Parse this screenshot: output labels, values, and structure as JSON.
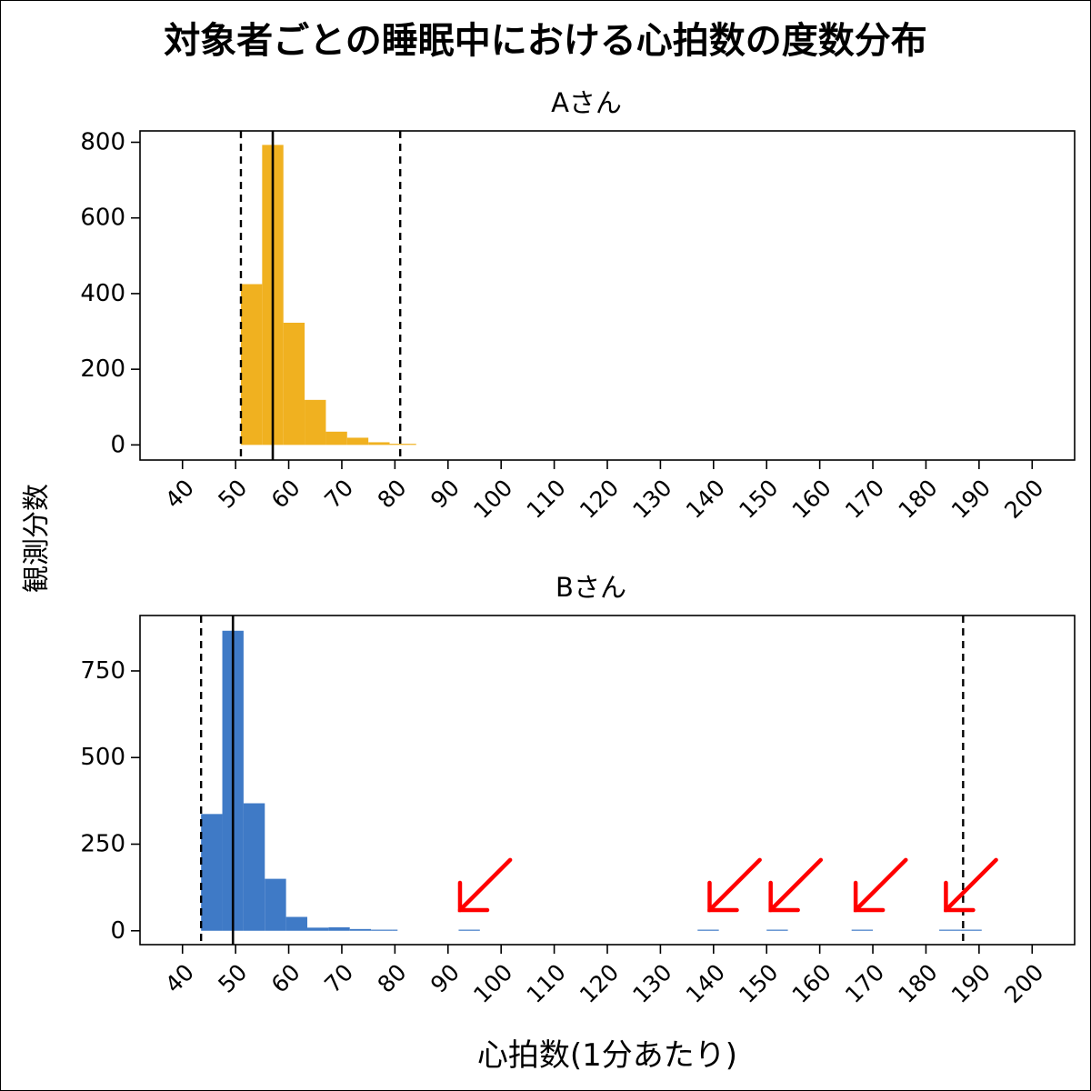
{
  "figure": {
    "title": "対象者ごとの睡眠中における心拍数の度数分布",
    "shared_ylabel": "観測分数",
    "xlabel": "心拍数(1分あたり)"
  },
  "colors": {
    "A": "#F0B120",
    "B": "#3F7AC6",
    "arrow": "#FF0000"
  },
  "chart_data": [
    {
      "type": "bar",
      "subplot_title": "Aさん",
      "x_tick_values": [
        40,
        50,
        60,
        70,
        80,
        90,
        100,
        110,
        120,
        130,
        140,
        150,
        160,
        170,
        180,
        190,
        200
      ],
      "y_tick_values": [
        0,
        200,
        400,
        600,
        800
      ],
      "xlim": [
        32,
        208
      ],
      "ylim": [
        -40,
        830
      ],
      "bin_width": 4,
      "bins": [
        {
          "x0": 51,
          "x1": 55,
          "count": 425
        },
        {
          "x0": 55,
          "x1": 59,
          "count": 793
        },
        {
          "x0": 59,
          "x1": 63,
          "count": 323
        },
        {
          "x0": 63,
          "x1": 67,
          "count": 119
        },
        {
          "x0": 67,
          "x1": 71,
          "count": 35
        },
        {
          "x0": 71,
          "x1": 75,
          "count": 19
        },
        {
          "x0": 75,
          "x1": 79,
          "count": 7
        },
        {
          "x0": 79,
          "x1": 83,
          "count": 3
        },
        {
          "x0": 83,
          "x1": 84,
          "count": 1
        }
      ],
      "median": 57,
      "range_lines": [
        51,
        81
      ],
      "color": "#F0B120"
    },
    {
      "type": "bar",
      "subplot_title": "Bさん",
      "x_tick_values": [
        40,
        50,
        60,
        70,
        80,
        90,
        100,
        110,
        120,
        130,
        140,
        150,
        160,
        170,
        180,
        190,
        200
      ],
      "y_tick_values": [
        0,
        250,
        500,
        750
      ],
      "xlim": [
        32,
        208
      ],
      "ylim": [
        -40,
        910
      ],
      "bin_width": 4,
      "bins": [
        {
          "x0": 43.5,
          "x1": 47.5,
          "count": 337
        },
        {
          "x0": 47.5,
          "x1": 51.5,
          "count": 866
        },
        {
          "x0": 51.5,
          "x1": 55.5,
          "count": 368
        },
        {
          "x0": 55.5,
          "x1": 59.5,
          "count": 150
        },
        {
          "x0": 59.5,
          "x1": 63.5,
          "count": 40
        },
        {
          "x0": 63.5,
          "x1": 67.5,
          "count": 9
        },
        {
          "x0": 67.5,
          "x1": 71.5,
          "count": 10
        },
        {
          "x0": 71.5,
          "x1": 75.5,
          "count": 5
        },
        {
          "x0": 75.5,
          "x1": 79.5,
          "count": 2
        },
        {
          "x0": 79.5,
          "x1": 80.5,
          "count": 1
        },
        {
          "x0": 92,
          "x1": 96,
          "count": 1
        },
        {
          "x0": 137,
          "x1": 141,
          "count": 1
        },
        {
          "x0": 150,
          "x1": 154,
          "count": 1
        },
        {
          "x0": 166,
          "x1": 170,
          "count": 1
        },
        {
          "x0": 182.5,
          "x1": 186.5,
          "count": 1
        },
        {
          "x0": 186.5,
          "x1": 190.5,
          "count": 2
        }
      ],
      "median": 49.5,
      "range_lines": [
        43.5,
        187
      ],
      "color": "#3F7AC6",
      "outlier_arrows_at": [
        95,
        142,
        153.5,
        169.5,
        186.5
      ]
    }
  ]
}
